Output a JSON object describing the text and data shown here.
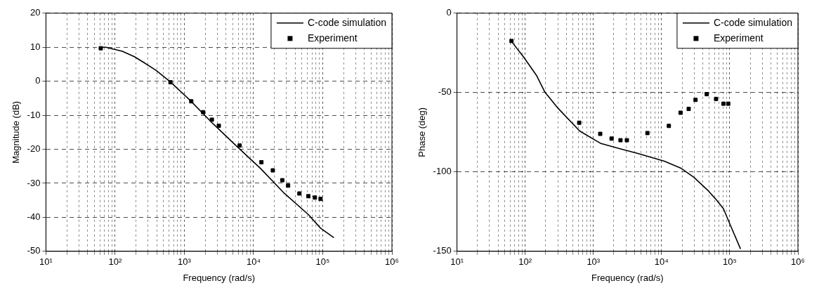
{
  "chart_data": [
    {
      "type": "line",
      "xlabel": "Frequency (rad/s)",
      "ylabel": "Magnitude (dB)",
      "log": "x",
      "grid": true,
      "legend": "top right",
      "xlim": [
        10,
        1000000
      ],
      "ylim": [
        -50,
        20
      ],
      "xticks": [
        {
          "value": 10,
          "label": "10¹"
        },
        {
          "value": 20,
          "label": null
        },
        {
          "value": 30,
          "label": null
        },
        {
          "value": 40,
          "label": null
        },
        {
          "value": 50,
          "label": null
        },
        {
          "value": 60,
          "label": null
        },
        {
          "value": 70,
          "label": null
        },
        {
          "value": 80,
          "label": null
        },
        {
          "value": 90,
          "label": null
        },
        {
          "value": 100,
          "label": "10²"
        },
        {
          "value": 200,
          "label": null
        },
        {
          "value": 300,
          "label": null
        },
        {
          "value": 400,
          "label": null
        },
        {
          "value": 500,
          "label": null
        },
        {
          "value": 600,
          "label": null
        },
        {
          "value": 700,
          "label": null
        },
        {
          "value": 800,
          "label": null
        },
        {
          "value": 900,
          "label": null
        },
        {
          "value": 1000,
          "label": "10³"
        },
        {
          "value": 2000,
          "label": null
        },
        {
          "value": 3000,
          "label": null
        },
        {
          "value": 4000,
          "label": null
        },
        {
          "value": 5000,
          "label": null
        },
        {
          "value": 6000,
          "label": null
        },
        {
          "value": 7000,
          "label": null
        },
        {
          "value": 8000,
          "label": null
        },
        {
          "value": 9000,
          "label": null
        },
        {
          "value": 10000,
          "label": "10⁴"
        },
        {
          "value": 20000,
          "label": null
        },
        {
          "value": 30000,
          "label": null
        },
        {
          "value": 40000,
          "label": null
        },
        {
          "value": 50000,
          "label": null
        },
        {
          "value": 60000,
          "label": null
        },
        {
          "value": 70000,
          "label": null
        },
        {
          "value": 80000,
          "label": null
        },
        {
          "value": 90000,
          "label": null
        },
        {
          "value": 100000,
          "label": "10⁵"
        },
        {
          "value": 200000,
          "label": null
        },
        {
          "value": 300000,
          "label": null
        },
        {
          "value": 400000,
          "label": null
        },
        {
          "value": 500000,
          "label": null
        },
        {
          "value": 600000,
          "label": null
        },
        {
          "value": 700000,
          "label": null
        },
        {
          "value": 800000,
          "label": null
        },
        {
          "value": 900000,
          "label": null
        },
        {
          "value": 1000000,
          "label": "10⁶"
        }
      ],
      "yticks": [
        -50,
        -40,
        -30,
        -20,
        -10,
        0,
        10,
        20
      ],
      "series": [
        {
          "name": "C-code simulation",
          "type": "line",
          "color": "#000000",
          "marker": "none",
          "line_style": "solid",
          "x": [
            62,
            73,
            127,
            190,
            260,
            390,
            620,
            1170,
            2600,
            5700,
            12700,
            28000,
            62000,
            93000,
            145000
          ],
          "values": [
            10,
            10,
            8.8,
            7.2,
            5.5,
            3.2,
            -0.1,
            -5.3,
            -12.5,
            -19.1,
            -25.7,
            -33,
            -39.2,
            -43.2,
            -46
          ]
        },
        {
          "name": "Experiment",
          "type": "scatter",
          "color": "#000000",
          "marker": "square",
          "x": [
            62,
            630,
            1260,
            1870,
            2500,
            3150,
            6300,
            13000,
            19000,
            26000,
            31600,
            46000,
            62000,
            77000,
            93000
          ],
          "values": [
            9.7,
            -0.3,
            -5.9,
            -9.1,
            -11.3,
            -13.1,
            -18.9,
            -23.8,
            -26.2,
            -29.1,
            -30.7,
            -33,
            -33.8,
            -34.2,
            -34.6
          ]
        }
      ]
    },
    {
      "type": "line",
      "xlabel": "Frequency (rad/s)",
      "ylabel": "Phase (deg)",
      "log": "x",
      "grid": true,
      "legend": "top right",
      "xlim": [
        10,
        1000000
      ],
      "ylim": [
        -150,
        0
      ],
      "xticks": [
        {
          "value": 10,
          "label": "10¹"
        },
        {
          "value": 20,
          "label": null
        },
        {
          "value": 30,
          "label": null
        },
        {
          "value": 40,
          "label": null
        },
        {
          "value": 50,
          "label": null
        },
        {
          "value": 60,
          "label": null
        },
        {
          "value": 70,
          "label": null
        },
        {
          "value": 80,
          "label": null
        },
        {
          "value": 90,
          "label": null
        },
        {
          "value": 100,
          "label": "10²"
        },
        {
          "value": 200,
          "label": null
        },
        {
          "value": 300,
          "label": null
        },
        {
          "value": 400,
          "label": null
        },
        {
          "value": 500,
          "label": null
        },
        {
          "value": 600,
          "label": null
        },
        {
          "value": 700,
          "label": null
        },
        {
          "value": 800,
          "label": null
        },
        {
          "value": 900,
          "label": null
        },
        {
          "value": 1000,
          "label": "10³"
        },
        {
          "value": 2000,
          "label": null
        },
        {
          "value": 3000,
          "label": null
        },
        {
          "value": 4000,
          "label": null
        },
        {
          "value": 5000,
          "label": null
        },
        {
          "value": 6000,
          "label": null
        },
        {
          "value": 7000,
          "label": null
        },
        {
          "value": 8000,
          "label": null
        },
        {
          "value": 9000,
          "label": null
        },
        {
          "value": 10000,
          "label": "10⁴"
        },
        {
          "value": 20000,
          "label": null
        },
        {
          "value": 30000,
          "label": null
        },
        {
          "value": 40000,
          "label": null
        },
        {
          "value": 50000,
          "label": null
        },
        {
          "value": 60000,
          "label": null
        },
        {
          "value": 70000,
          "label": null
        },
        {
          "value": 80000,
          "label": null
        },
        {
          "value": 90000,
          "label": null
        },
        {
          "value": 100000,
          "label": "10⁵"
        },
        {
          "value": 200000,
          "label": null
        },
        {
          "value": 300000,
          "label": null
        },
        {
          "value": 400000,
          "label": null
        },
        {
          "value": 500000,
          "label": null
        },
        {
          "value": 600000,
          "label": null
        },
        {
          "value": 700000,
          "label": null
        },
        {
          "value": 800000,
          "label": null
        },
        {
          "value": 900000,
          "label": null
        },
        {
          "value": 1000000,
          "label": "10⁶"
        }
      ],
      "yticks": [
        -150,
        -100,
        -50,
        0
      ],
      "series": [
        {
          "name": "C-code simulation",
          "type": "line",
          "color": "#000000",
          "marker": "none",
          "line_style": "solid",
          "x": [
            62,
            95,
            148,
            195,
            305,
            630,
            1290,
            2400,
            4500,
            11000,
            19000,
            30000,
            47000,
            64000,
            81000,
            100000,
            144000
          ],
          "values": [
            -17.4,
            -27.6,
            -39.5,
            -49.8,
            -60,
            -74.2,
            -82.1,
            -85.3,
            -88.4,
            -93.2,
            -97.5,
            -103.5,
            -111.3,
            -117.7,
            -123.2,
            -132.6,
            -148.5
          ]
        },
        {
          "name": "Experiment",
          "type": "scatter",
          "color": "#000000",
          "marker": "square",
          "x": [
            63,
            620,
            1260,
            1850,
            2500,
            3100,
            6200,
            12800,
            19000,
            25000,
            31500,
            46000,
            63000,
            81000,
            95000
          ],
          "values": [
            -17.5,
            -69,
            -76,
            -79,
            -80,
            -80,
            -75.5,
            -71,
            -62.7,
            -60.3,
            -54.6,
            -51,
            -54,
            -57,
            -57
          ]
        }
      ]
    }
  ]
}
